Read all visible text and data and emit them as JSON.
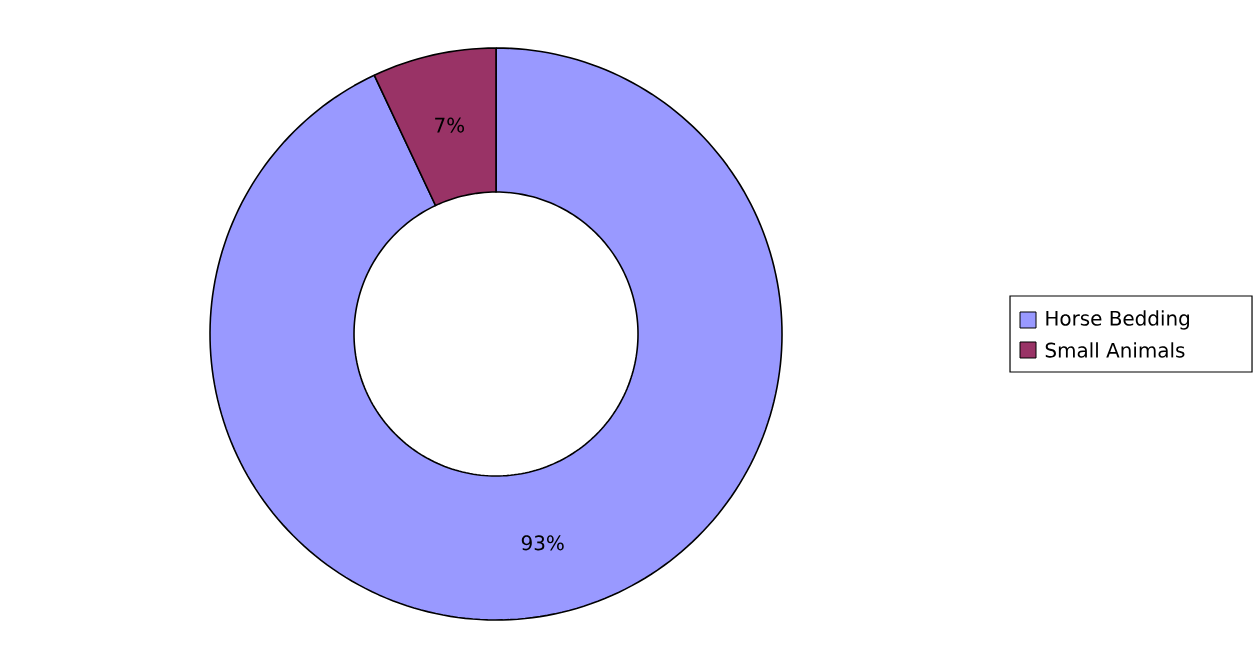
{
  "chart_data": {
    "type": "donut",
    "categories": [
      "Horse Bedding",
      "Small Animals"
    ],
    "values": [
      93,
      7
    ],
    "colors": [
      "#9999ff",
      "#993366"
    ],
    "value_labels": [
      "93%",
      "7%"
    ],
    "legend": "right"
  }
}
